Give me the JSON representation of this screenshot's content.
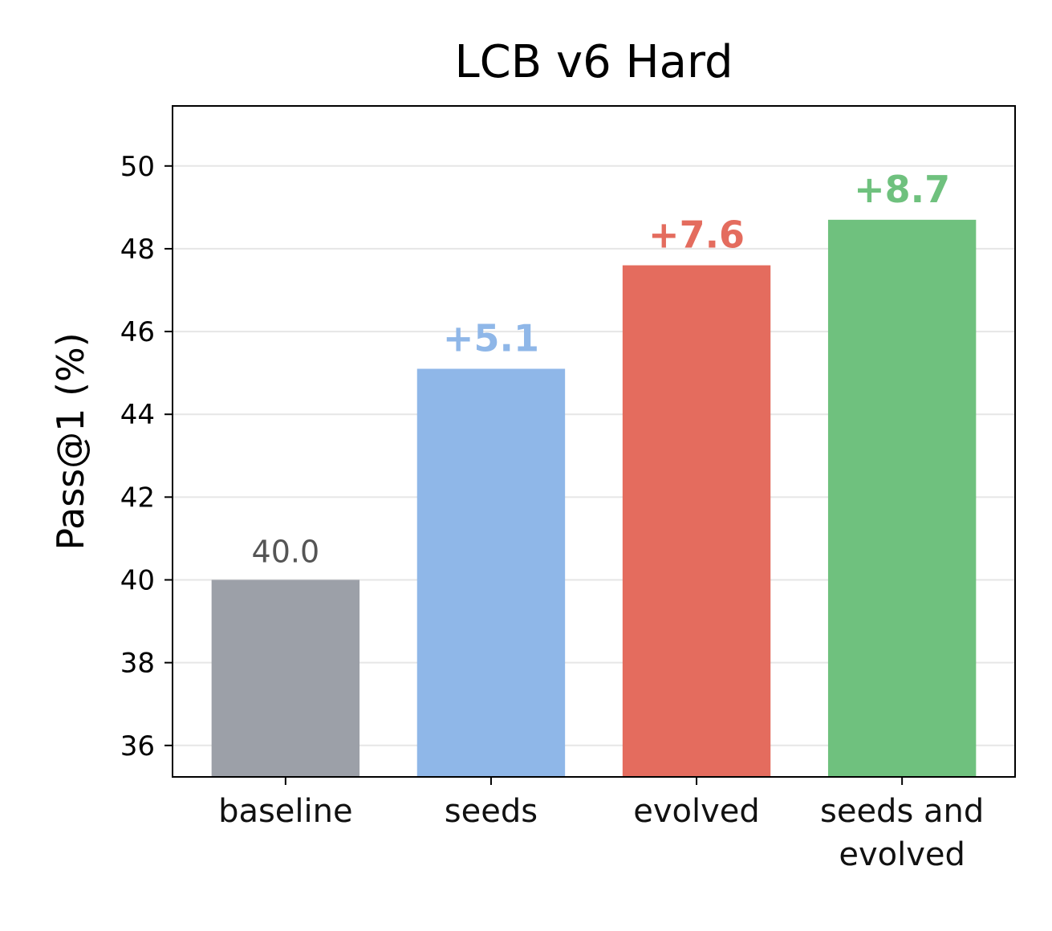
{
  "chart_data": {
    "type": "bar",
    "title": "LCB v6 Hard",
    "y_label": "Pass@1 (%)",
    "categories": [
      "baseline",
      "seeds",
      "evolved",
      "seeds and\nevolved"
    ],
    "values": [
      40.0,
      45.1,
      47.6,
      48.7
    ],
    "value_labels": [
      "40.0",
      null,
      null,
      null
    ],
    "deltas": [
      null,
      5.1,
      7.6,
      8.7
    ],
    "delta_labels": [
      null,
      "+5.1",
      "+7.6",
      "+8.7"
    ],
    "colors": [
      "#9ca0a8",
      "#8fb7e8",
      "#e46c5e",
      "#6fc17e"
    ],
    "ylim": [
      35.24,
      51.45
    ],
    "yticks": [
      36,
      38,
      40,
      42,
      44,
      46,
      48,
      50
    ],
    "grid": true
  }
}
